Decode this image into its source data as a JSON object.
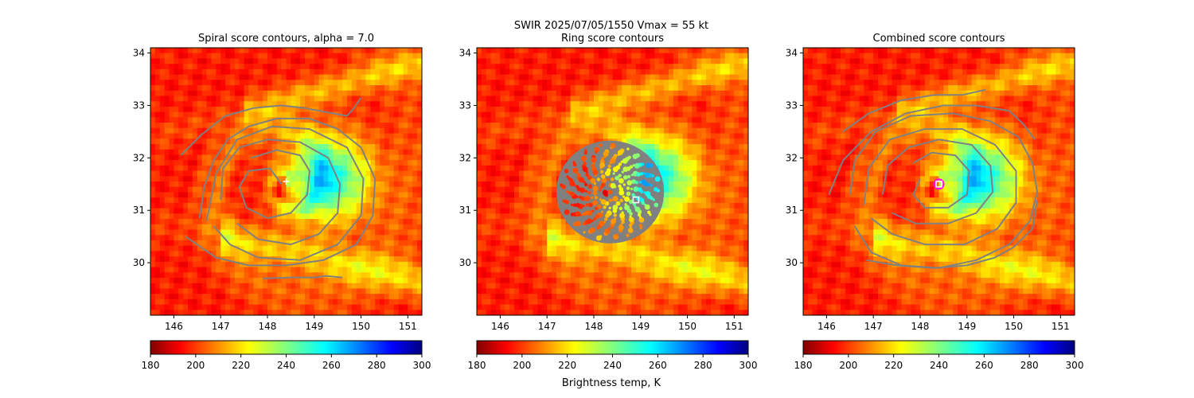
{
  "figure": {
    "suptitle_line1": "SWIR  2025/07/05/1550    Vmax = 55 kt",
    "colorbar_label": "Brightness temp, K"
  },
  "colors": {
    "contour": "#808080",
    "center_marker": "#ffffff",
    "combined_circle": "#ff00ff"
  },
  "chart_data": [
    {
      "type": "heatmap",
      "title": "Spiral score contours, alpha =  7.0",
      "xlim": [
        145.5,
        151.3
      ],
      "ylim": [
        29.0,
        34.1
      ],
      "xticks": [
        146,
        147,
        148,
        149,
        150,
        151
      ],
      "yticks": [
        30,
        31,
        32,
        33,
        34
      ],
      "colorbar": {
        "colormap": "jet_r",
        "range": [
          180,
          300
        ],
        "ticks": [
          180,
          200,
          220,
          240,
          260,
          280,
          300
        ]
      },
      "storm_center": {
        "lon": 148.4,
        "lat": 31.55,
        "marker": "plus"
      },
      "contours": [
        [
          [
            148.3,
            31.5
          ],
          [
            148.05,
            31.8
          ],
          [
            147.6,
            31.75
          ],
          [
            147.4,
            31.45
          ],
          [
            147.55,
            31.05
          ],
          [
            148.0,
            30.85
          ],
          [
            148.5,
            30.95
          ],
          [
            148.85,
            31.3
          ],
          [
            148.9,
            31.75
          ],
          [
            148.7,
            32.05
          ],
          [
            148.2,
            32.15
          ],
          [
            147.65,
            32.0
          ]
        ],
        [
          [
            147.0,
            31.2
          ],
          [
            147.05,
            31.8
          ],
          [
            147.4,
            32.2
          ],
          [
            148.0,
            32.35
          ],
          [
            148.7,
            32.3
          ],
          [
            149.3,
            32.0
          ],
          [
            149.55,
            31.5
          ],
          [
            149.5,
            30.95
          ],
          [
            149.1,
            30.55
          ],
          [
            148.5,
            30.35
          ],
          [
            147.8,
            30.45
          ],
          [
            147.35,
            30.75
          ]
        ],
        [
          [
            146.7,
            30.8
          ],
          [
            146.9,
            31.7
          ],
          [
            147.35,
            32.35
          ],
          [
            148.1,
            32.6
          ],
          [
            148.9,
            32.55
          ],
          [
            149.7,
            32.2
          ],
          [
            150.05,
            31.6
          ],
          [
            150.0,
            30.9
          ],
          [
            149.5,
            30.35
          ],
          [
            148.7,
            30.05
          ],
          [
            147.8,
            30.1
          ],
          [
            147.2,
            30.35
          ],
          [
            146.85,
            30.7
          ]
        ],
        [
          [
            146.25,
            30.5
          ],
          [
            146.9,
            30.1
          ],
          [
            147.6,
            29.95
          ],
          [
            148.4,
            29.95
          ],
          [
            149.2,
            30.05
          ],
          [
            149.9,
            30.35
          ],
          [
            150.25,
            30.9
          ],
          [
            150.3,
            31.6
          ],
          [
            150.0,
            32.2
          ],
          [
            149.5,
            32.55
          ],
          [
            148.9,
            32.75
          ],
          [
            148.2,
            32.75
          ],
          [
            147.6,
            32.6
          ],
          [
            147.15,
            32.35
          ],
          [
            146.85,
            31.95
          ],
          [
            146.65,
            31.45
          ],
          [
            146.55,
            30.85
          ]
        ],
        [
          [
            146.15,
            32.05
          ],
          [
            146.6,
            32.45
          ],
          [
            147.1,
            32.8
          ],
          [
            147.7,
            32.95
          ],
          [
            148.3,
            33.0
          ],
          [
            148.8,
            32.95
          ],
          [
            149.4,
            32.85
          ],
          [
            149.7,
            32.8
          ],
          [
            149.85,
            32.95
          ],
          [
            150.0,
            33.15
          ]
        ],
        [
          [
            147.9,
            29.7
          ],
          [
            148.5,
            29.72
          ],
          [
            149.0,
            29.72
          ],
          [
            149.25,
            29.75
          ],
          [
            149.6,
            29.72
          ]
        ]
      ]
    },
    {
      "type": "heatmap",
      "title": "Ring score contours",
      "xlim": [
        145.5,
        151.3
      ],
      "ylim": [
        29.0,
        34.1
      ],
      "xticks": [
        146,
        147,
        148,
        149,
        150,
        151
      ],
      "yticks": [
        30,
        31,
        32,
        33,
        34
      ],
      "colorbar": {
        "colormap": "jet_r",
        "range": [
          180,
          300
        ],
        "ticks": [
          180,
          200,
          220,
          240,
          260,
          280,
          300
        ]
      },
      "storm_center": {
        "lon": 148.9,
        "lat": 31.2,
        "marker": "square"
      },
      "ring_region": {
        "center": [
          148.35,
          31.35
        ],
        "radius_lon": 1.15,
        "radius_lat": 0.98
      }
    },
    {
      "type": "heatmap",
      "title": "Combined score contours",
      "xlim": [
        145.5,
        151.3
      ],
      "ylim": [
        29.0,
        34.1
      ],
      "xticks": [
        146,
        147,
        148,
        149,
        150,
        151
      ],
      "yticks": [
        30,
        31,
        32,
        33,
        34
      ],
      "colorbar": {
        "colormap": "jet_r",
        "range": [
          180,
          300
        ],
        "ticks": [
          180,
          200,
          220,
          240,
          260,
          280,
          300
        ]
      },
      "storm_center": {
        "lon": 148.4,
        "lat": 31.5,
        "marker": "square-circle"
      },
      "contours": [
        [
          [
            148.0,
            31.6
          ],
          [
            147.85,
            31.3
          ],
          [
            148.1,
            31.05
          ],
          [
            148.6,
            31.05
          ],
          [
            149.0,
            31.3
          ],
          [
            149.05,
            31.75
          ],
          [
            148.75,
            32.05
          ],
          [
            148.25,
            32.1
          ],
          [
            147.85,
            31.9
          ]
        ],
        [
          [
            147.2,
            31.3
          ],
          [
            147.3,
            31.85
          ],
          [
            147.75,
            32.2
          ],
          [
            148.4,
            32.35
          ],
          [
            149.1,
            32.25
          ],
          [
            149.5,
            31.85
          ],
          [
            149.55,
            31.35
          ],
          [
            149.2,
            30.95
          ],
          [
            148.6,
            30.75
          ],
          [
            147.9,
            30.75
          ],
          [
            147.4,
            30.95
          ]
        ],
        [
          [
            146.8,
            31.1
          ],
          [
            146.9,
            31.8
          ],
          [
            147.35,
            32.35
          ],
          [
            148.1,
            32.55
          ],
          [
            148.9,
            32.55
          ],
          [
            149.6,
            32.25
          ],
          [
            150.05,
            31.75
          ],
          [
            150.05,
            31.15
          ],
          [
            149.65,
            30.65
          ],
          [
            148.95,
            30.35
          ],
          [
            148.1,
            30.35
          ],
          [
            147.4,
            30.55
          ],
          [
            146.95,
            30.85
          ]
        ],
        [
          [
            146.5,
            31.3
          ],
          [
            146.6,
            31.95
          ],
          [
            147.05,
            32.5
          ],
          [
            147.8,
            32.8
          ],
          [
            148.7,
            32.85
          ],
          [
            149.5,
            32.7
          ],
          [
            150.1,
            32.4
          ],
          [
            150.4,
            31.9
          ],
          [
            150.5,
            31.35
          ],
          [
            150.35,
            30.8
          ],
          [
            149.9,
            30.35
          ],
          [
            149.2,
            30.05
          ],
          [
            148.4,
            29.9
          ],
          [
            147.6,
            29.95
          ],
          [
            146.95,
            30.2
          ],
          [
            146.6,
            30.7
          ]
        ],
        [
          [
            146.05,
            31.3
          ],
          [
            146.35,
            31.95
          ],
          [
            146.95,
            32.5
          ],
          [
            147.7,
            32.85
          ],
          [
            148.5,
            33.0
          ],
          [
            149.2,
            33.0
          ],
          [
            149.9,
            32.9
          ],
          [
            150.2,
            32.65
          ],
          [
            150.45,
            32.35
          ]
        ],
        [
          [
            146.35,
            32.5
          ],
          [
            146.9,
            32.85
          ],
          [
            147.6,
            33.1
          ],
          [
            148.3,
            33.2
          ],
          [
            148.9,
            33.2
          ],
          [
            149.4,
            33.3
          ]
        ],
        [
          [
            146.85,
            30.05
          ],
          [
            147.5,
            29.95
          ],
          [
            148.3,
            29.9
          ],
          [
            149.0,
            29.95
          ],
          [
            149.6,
            30.1
          ],
          [
            150.0,
            30.3
          ],
          [
            150.4,
            30.65
          ],
          [
            150.5,
            31.2
          ]
        ]
      ]
    }
  ]
}
